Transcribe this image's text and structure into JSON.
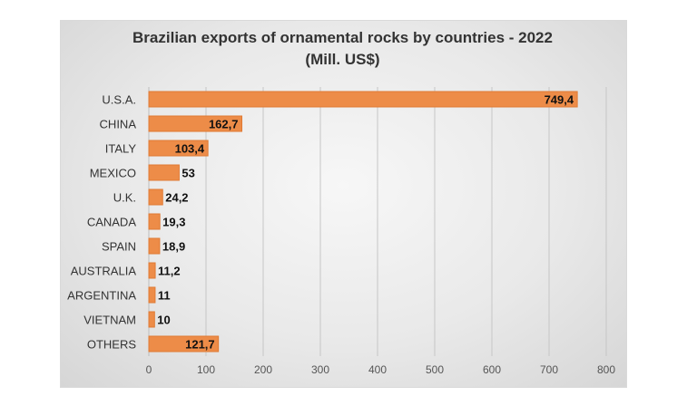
{
  "chart_data": {
    "type": "bar",
    "orientation": "horizontal",
    "title": "Brazilian exports of ornamental rocks by countries - 2022",
    "subtitle": "(Mill. US$)",
    "categories": [
      "U.S.A.",
      "CHINA",
      "ITALY",
      "MEXICO",
      "U.K.",
      "CANADA",
      "SPAIN",
      "AUSTRALIA",
      "ARGENTINA",
      "VIETNAM",
      "OTHERS"
    ],
    "values": [
      749.4,
      162.7,
      103.4,
      53,
      24.2,
      19.3,
      18.9,
      11.2,
      11,
      10,
      121.7
    ],
    "data_labels": [
      "749,4",
      "162,7",
      "103,4",
      "53",
      "24,2",
      "19,3",
      "18,9",
      "11,2",
      "11",
      "10",
      "121,7"
    ],
    "xlim": [
      0,
      800
    ],
    "xticks": [
      0,
      100,
      200,
      300,
      400,
      500,
      600,
      700,
      800
    ],
    "xtick_labels": [
      "0",
      "100",
      "200",
      "300",
      "400",
      "500",
      "600",
      "700",
      "800"
    ],
    "grid": "vertical",
    "legend": "none",
    "bar_color": "#ed8c48",
    "bar_border_color": "#e07a33"
  }
}
